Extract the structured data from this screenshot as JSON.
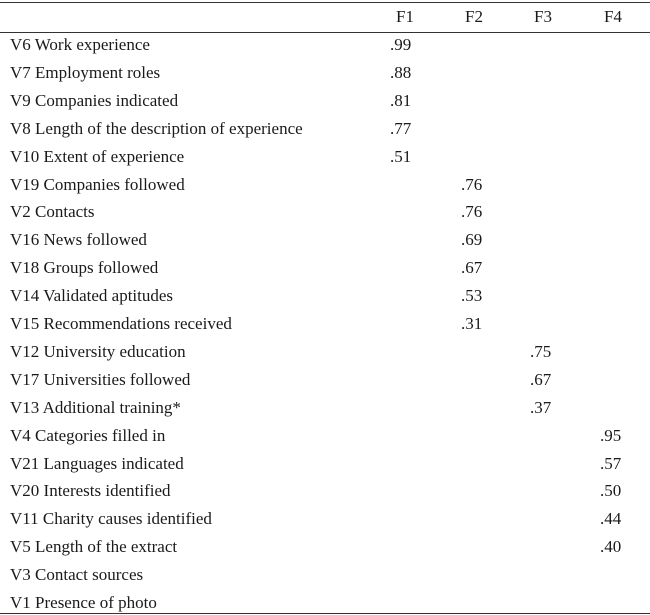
{
  "table": {
    "columns": [
      "F1",
      "F2",
      "F3",
      "F4"
    ],
    "rows": [
      {
        "label": "V6 Work experience",
        "values": [
          ".99",
          null,
          null,
          null
        ]
      },
      {
        "label": "V7 Employment roles",
        "values": [
          ".88",
          null,
          null,
          null
        ]
      },
      {
        "label": "V9 Companies indicated",
        "values": [
          ".81",
          null,
          null,
          null
        ]
      },
      {
        "label": "V8 Length of the description of experience",
        "values": [
          ".77",
          null,
          null,
          null
        ]
      },
      {
        "label": "V10 Extent of experience",
        "values": [
          ".51",
          null,
          null,
          null
        ]
      },
      {
        "label": "V19 Companies followed",
        "values": [
          null,
          ".76",
          null,
          null
        ]
      },
      {
        "label": "V2 Contacts",
        "values": [
          null,
          ".76",
          null,
          null
        ]
      },
      {
        "label": "V16 News followed",
        "values": [
          null,
          ".69",
          null,
          null
        ]
      },
      {
        "label": "V18 Groups followed",
        "values": [
          null,
          ".67",
          null,
          null
        ]
      },
      {
        "label": "V14 Validated aptitudes",
        "values": [
          null,
          ".53",
          null,
          null
        ]
      },
      {
        "label": "V15 Recommendations received",
        "values": [
          null,
          ".31",
          null,
          null
        ]
      },
      {
        "label": "V12 University education",
        "values": [
          null,
          null,
          ".75",
          null
        ]
      },
      {
        "label": "V17 Universities followed",
        "values": [
          null,
          null,
          ".67",
          null
        ]
      },
      {
        "label": "V13 Additional training*",
        "values": [
          null,
          null,
          ".37",
          null
        ]
      },
      {
        "label": "V4 Categories filled in",
        "values": [
          null,
          null,
          null,
          ".95"
        ]
      },
      {
        "label": "V21 Languages indicated",
        "values": [
          null,
          null,
          null,
          ".57"
        ]
      },
      {
        "label": "V20 Interests identified",
        "values": [
          null,
          null,
          null,
          ".50"
        ]
      },
      {
        "label": "V11 Charity causes identified",
        "values": [
          null,
          null,
          null,
          ".44"
        ]
      },
      {
        "label": "V5 Length of the extract",
        "values": [
          null,
          null,
          null,
          ".40"
        ]
      },
      {
        "label": "V3 Contact sources",
        "values": [
          null,
          null,
          null,
          null
        ]
      },
      {
        "label": "V1 Presence of photo",
        "values": [
          null,
          null,
          null,
          null
        ]
      }
    ]
  }
}
